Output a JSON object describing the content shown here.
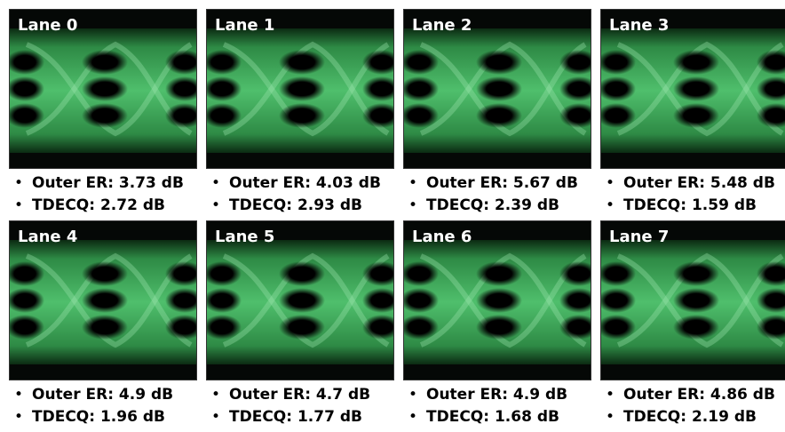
{
  "lanes": [
    {
      "label": "Lane 0",
      "outer_er": "Outer ER: 3.73 dB",
      "tdecq": "TDECQ: 2.72 dB"
    },
    {
      "label": "Lane 1",
      "outer_er": "Outer ER: 4.03 dB",
      "tdecq": "TDECQ: 2.93 dB"
    },
    {
      "label": "Lane 2",
      "outer_er": "Outer ER: 5.67 dB",
      "tdecq": "TDECQ: 2.39 dB"
    },
    {
      "label": "Lane 3",
      "outer_er": "Outer ER: 5.48 dB",
      "tdecq": "TDECQ: 1.59 dB"
    },
    {
      "label": "Lane 4",
      "outer_er": "Outer ER: 4.9 dB",
      "tdecq": "TDECQ: 1.96 dB"
    },
    {
      "label": "Lane 5",
      "outer_er": "Outer ER: 4.7 dB",
      "tdecq": "TDECQ: 1.77 dB"
    },
    {
      "label": "Lane 6",
      "outer_er": "Outer ER: 4.9 dB",
      "tdecq": "TDECQ: 1.68 dB"
    },
    {
      "label": "Lane 7",
      "outer_er": "Outer ER: 4.86 dB",
      "tdecq": "TDECQ: 2.19 dB"
    }
  ]
}
